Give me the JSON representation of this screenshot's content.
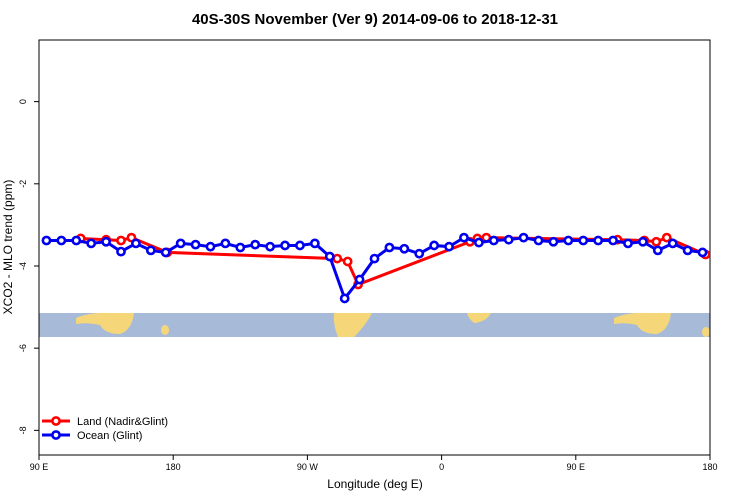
{
  "chart_data": {
    "type": "line",
    "title": "40S-30S November (Ver 9)   2014-09-06 to 2018-12-31",
    "x_label": "Longitude (deg E)",
    "y_label": "XCO2 - MLO trend (ppm)",
    "xlim": [
      90,
      540
    ],
    "ylim": [
      -8.6,
      1.5
    ],
    "xticks": [
      {
        "value": 90,
        "label": "90 E"
      },
      180,
      {
        "value": 270,
        "label": "90 W"
      },
      {
        "value": 360,
        "label": "0"
      },
      {
        "value": 450,
        "label": "90 E"
      },
      {
        "value": 540,
        "label": "180"
      }
    ],
    "yticks": [
      0,
      -2,
      -4,
      -6,
      -8
    ],
    "legend": "bottom-left",
    "series": [
      {
        "name": "Land (Nadir&Glint)",
        "color": "#ff0000",
        "x": [
          118,
          135,
          145,
          152,
          176,
          290,
          297,
          304,
          379,
          384,
          390,
          478,
          496,
          504,
          511,
          537
        ],
        "values": [
          -3.33,
          -3.36,
          -3.38,
          -3.31,
          -3.67,
          -3.82,
          -3.89,
          -4.45,
          -3.41,
          -3.33,
          -3.31,
          -3.36,
          -3.38,
          -3.41,
          -3.31,
          -3.72
        ]
      },
      {
        "name": "Ocean (Glint)",
        "color": "#0000ee",
        "x": [
          95,
          105,
          115,
          125,
          135,
          145,
          155,
          165,
          175,
          185,
          195,
          205,
          215,
          225,
          235,
          245,
          255,
          265,
          275,
          285,
          295,
          305,
          315,
          325,
          335,
          345,
          355,
          365,
          375,
          385,
          395,
          405,
          415,
          425,
          435,
          445,
          455,
          465,
          475,
          485,
          495,
          505,
          515,
          525,
          535
        ],
        "values": [
          -3.38,
          -3.38,
          -3.38,
          -3.45,
          -3.41,
          -3.65,
          -3.45,
          -3.62,
          -3.67,
          -3.45,
          -3.48,
          -3.53,
          -3.45,
          -3.55,
          -3.48,
          -3.53,
          -3.5,
          -3.5,
          -3.45,
          -3.77,
          -4.79,
          -4.33,
          -3.82,
          -3.55,
          -3.58,
          -3.7,
          -3.5,
          -3.53,
          -3.31,
          -3.43,
          -3.38,
          -3.36,
          -3.31,
          -3.38,
          -3.41,
          -3.38,
          -3.38,
          -3.38,
          -3.38,
          -3.45,
          -3.41,
          -3.62,
          -3.45,
          -3.62,
          -3.67
        ]
      }
    ]
  }
}
